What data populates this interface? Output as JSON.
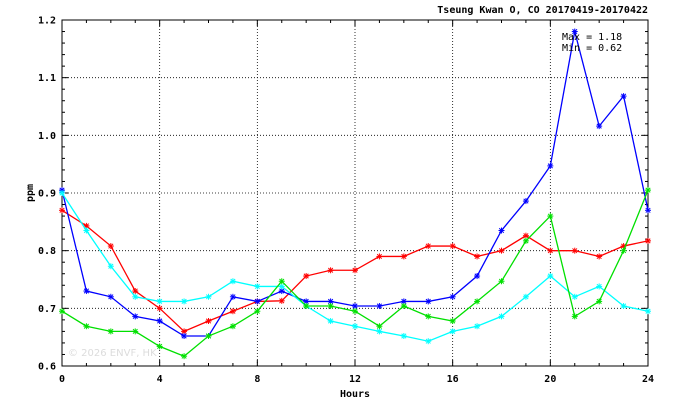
{
  "chart_data": {
    "type": "line",
    "title": "Tseung Kwan O, CO 20170419-20170422",
    "xlabel": "Hours",
    "ylabel": "ppm",
    "xlim": [
      0,
      24
    ],
    "ylim": [
      0.6,
      1.2
    ],
    "x_ticks": [
      "0",
      "4",
      "8",
      "12",
      "16",
      "20",
      "24"
    ],
    "y_ticks": [
      "0.6",
      "0.7",
      "0.8",
      "0.9",
      "1.0",
      "1.1",
      "1.2"
    ],
    "grid": true,
    "annotation": {
      "max_text": "Max = 1.18",
      "min_text": "Min = 0.62"
    },
    "watermark": "© 2026 ENVF, HK",
    "x": [
      0,
      1,
      2,
      3,
      4,
      5,
      6,
      7,
      8,
      9,
      10,
      11,
      12,
      13,
      14,
      15,
      16,
      17,
      18,
      19,
      20,
      21,
      22,
      23,
      24
    ],
    "series": [
      {
        "color": "#ff0000",
        "values": [
          0.87,
          0.843,
          0.808,
          0.73,
          0.7,
          0.66,
          0.678,
          0.695,
          0.712,
          0.713,
          0.756,
          0.766,
          0.766,
          0.79,
          0.79,
          0.808,
          0.808,
          0.79,
          0.8,
          0.826,
          0.8,
          0.8,
          0.79,
          0.808,
          0.817
        ]
      },
      {
        "color": "#0000ff",
        "values": [
          0.905,
          0.73,
          0.72,
          0.686,
          0.678,
          0.652,
          0.652,
          0.72,
          0.712,
          0.73,
          0.712,
          0.712,
          0.704,
          0.704,
          0.712,
          0.712,
          0.72,
          0.756,
          0.835,
          0.886,
          0.947,
          1.18,
          1.016,
          1.068,
          0.87
        ]
      },
      {
        "color": "#00ffff",
        "values": [
          0.9,
          0.835,
          0.773,
          0.72,
          0.712,
          0.712,
          0.72,
          0.747,
          0.738,
          0.738,
          0.704,
          0.678,
          0.669,
          0.66,
          0.652,
          0.643,
          0.66,
          0.669,
          0.686,
          0.72,
          0.756,
          0.72,
          0.738,
          0.704,
          0.695
        ]
      },
      {
        "color": "#00e000",
        "values": [
          0.695,
          0.669,
          0.66,
          0.66,
          0.634,
          0.617,
          0.652,
          0.669,
          0.695,
          0.747,
          0.704,
          0.704,
          0.695,
          0.669,
          0.704,
          0.686,
          0.678,
          0.712,
          0.747,
          0.817,
          0.86,
          0.686,
          0.712,
          0.8,
          0.905
        ]
      }
    ]
  }
}
